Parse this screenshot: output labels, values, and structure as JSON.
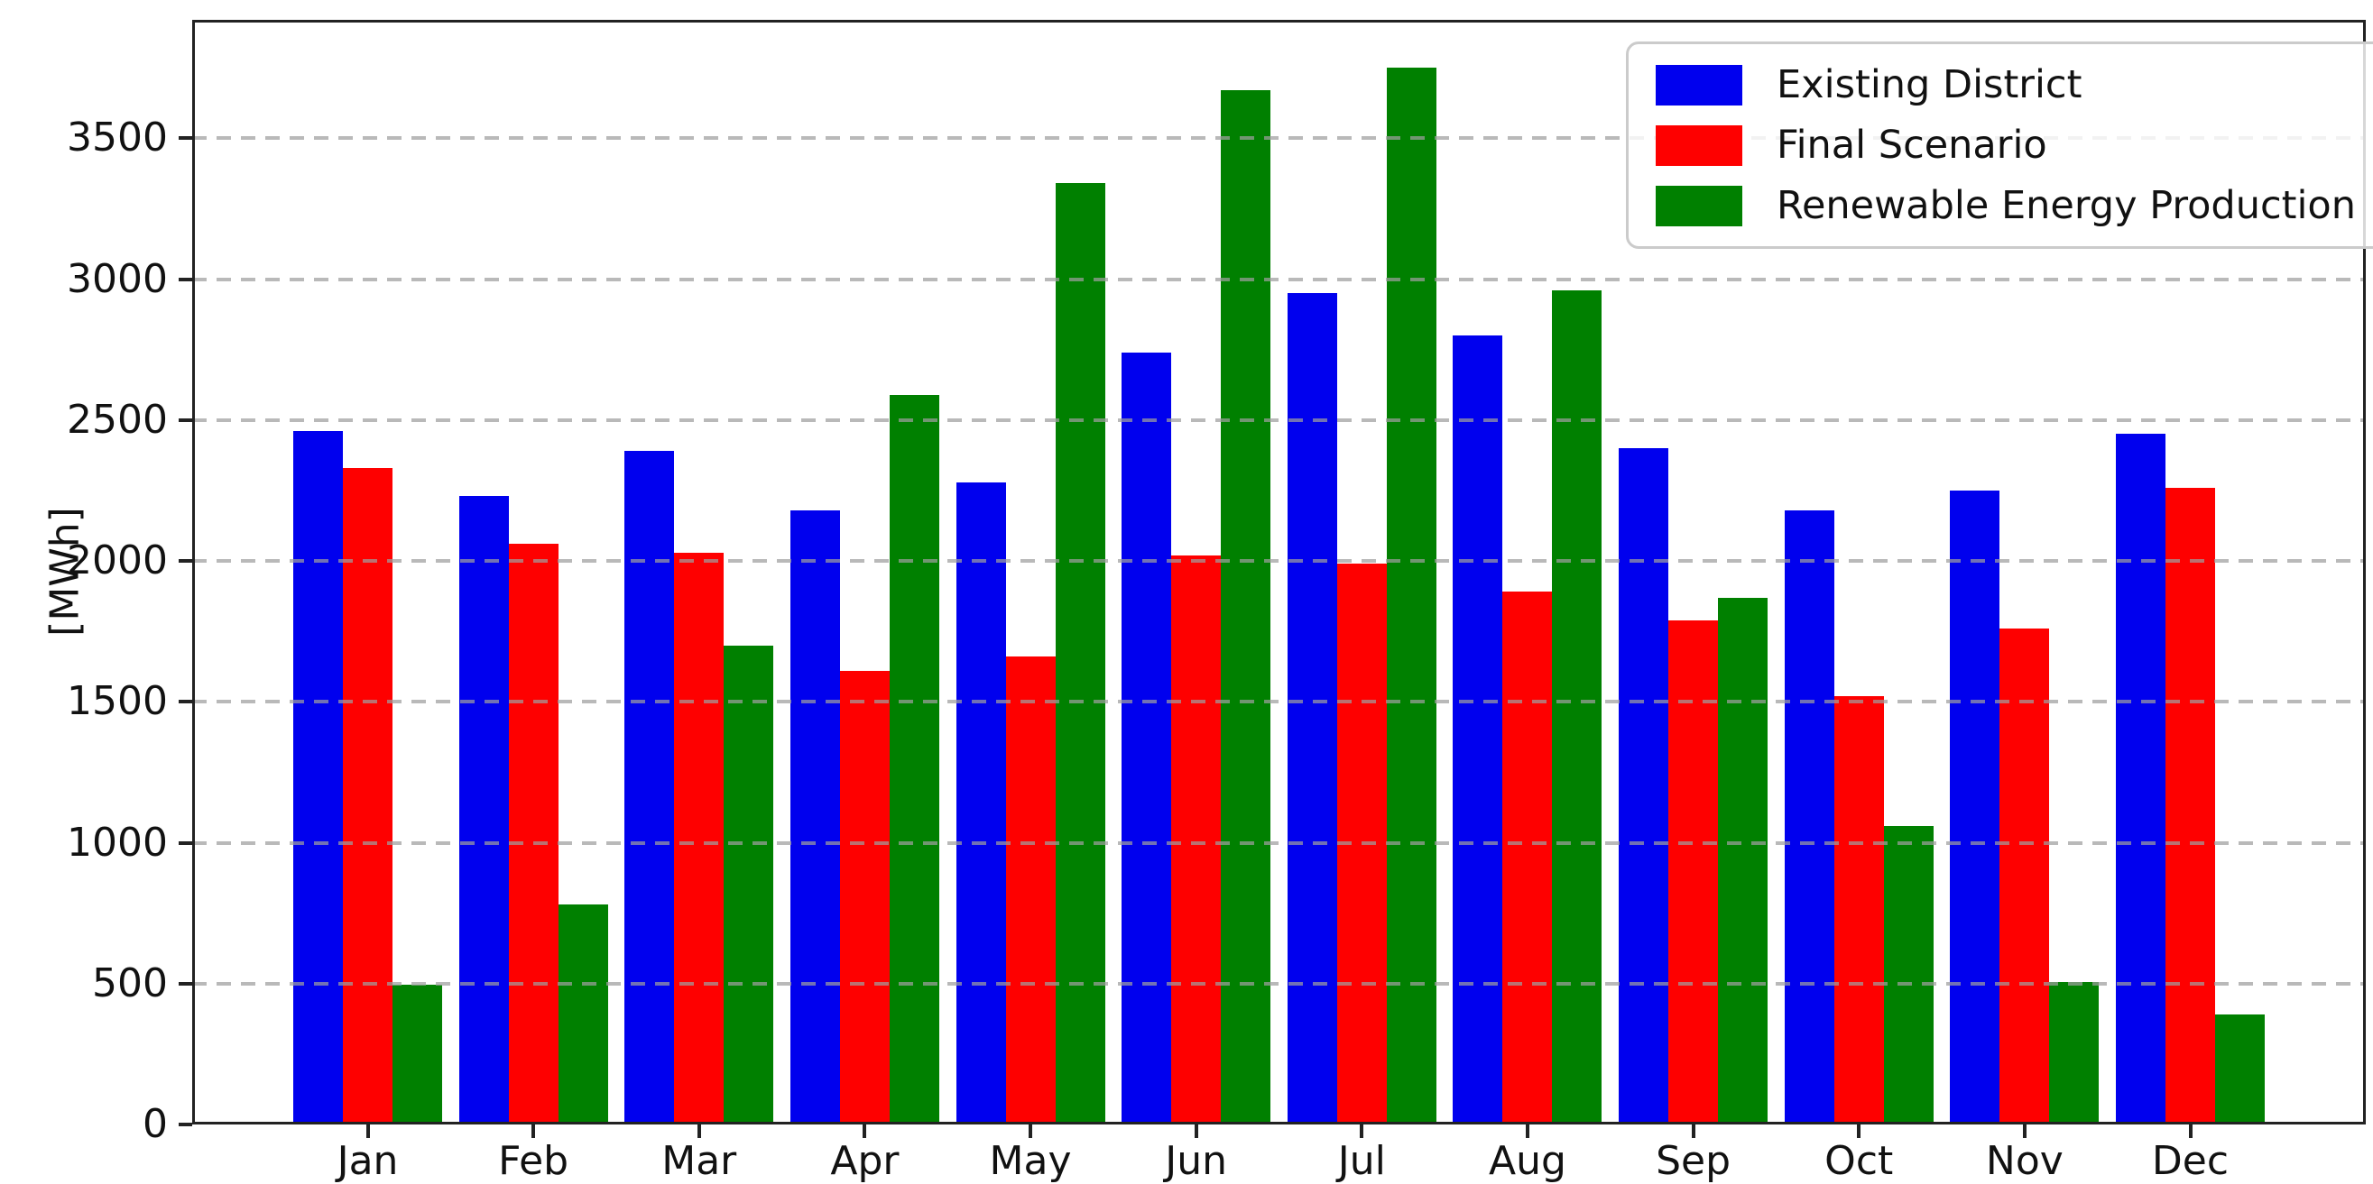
{
  "chart_data": {
    "type": "bar",
    "title": "",
    "xlabel": "",
    "ylabel": "[MWh]",
    "categories": [
      "Jan",
      "Feb",
      "Mar",
      "Apr",
      "May",
      "Jun",
      "Jul",
      "Aug",
      "Sep",
      "Oct",
      "Nov",
      "Dec"
    ],
    "series": [
      {
        "name": "Existing District",
        "color": "#0000ee",
        "values": [
          2460,
          2230,
          2390,
          2180,
          2280,
          2740,
          2950,
          2800,
          2400,
          2180,
          2250,
          2450
        ]
      },
      {
        "name": "Final Scenario",
        "color": "#fe0000",
        "values": [
          2330,
          2060,
          2030,
          1610,
          1660,
          2020,
          1990,
          1890,
          1790,
          1520,
          1760,
          2260
        ]
      },
      {
        "name": "Renewable Energy Production",
        "color": "#008000",
        "values": [
          495,
          780,
          1700,
          2590,
          3340,
          3670,
          3750,
          2960,
          1870,
          1060,
          505,
          390
        ]
      }
    ],
    "yticks": [
      0,
      500,
      1000,
      1500,
      2000,
      2500,
      3000,
      3500
    ],
    "ylim": [
      0,
      3920
    ],
    "grid": "horizontal-dashed",
    "legend_position": "top-right-inside"
  }
}
